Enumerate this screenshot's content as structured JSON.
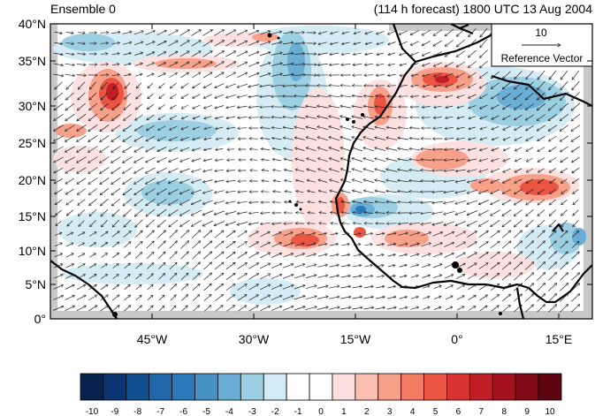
{
  "header": {
    "left_title": "Ensemble 0",
    "right_title": "(114 h forecast) 1800 UTC 13 Aug 2004"
  },
  "axes": {
    "lat_ticks": [
      "40°N",
      "35°N",
      "30°N",
      "25°N",
      "20°N",
      "15°N",
      "10°N",
      "5°N",
      "0°"
    ],
    "lon_ticks": [
      "45°W",
      "30°W",
      "15°W",
      "0°",
      "15°E"
    ]
  },
  "reference_vector": {
    "magnitude": "10",
    "label": "Reference Vector"
  },
  "colorbar": {
    "labels": [
      "-10",
      "-9",
      "-8",
      "-7",
      "-6",
      "-5",
      "-4",
      "-3",
      "-2",
      "-1",
      "0",
      "1",
      "2",
      "3",
      "4",
      "5",
      "6",
      "7",
      "8",
      "9",
      "10"
    ],
    "colors": [
      "#08224d",
      "#0a3571",
      "#114e8e",
      "#1f67aa",
      "#2b78b8",
      "#4692c6",
      "#6aaed6",
      "#9ccfe2",
      "#d3ebf5",
      "#ffffff",
      "#ffffff",
      "#fde0e0",
      "#fbbfb0",
      "#f8a18a",
      "#f37b62",
      "#ec5443",
      "#d83232",
      "#c21e27",
      "#a6111f",
      "#820b18",
      "#5c0510"
    ]
  },
  "map": {
    "land_mask_color": "#c8c8c8",
    "coastline_color": "#000000",
    "warm_anomaly_color": "#e04040",
    "cool_anomaly_color": "#3b8cc4"
  }
}
